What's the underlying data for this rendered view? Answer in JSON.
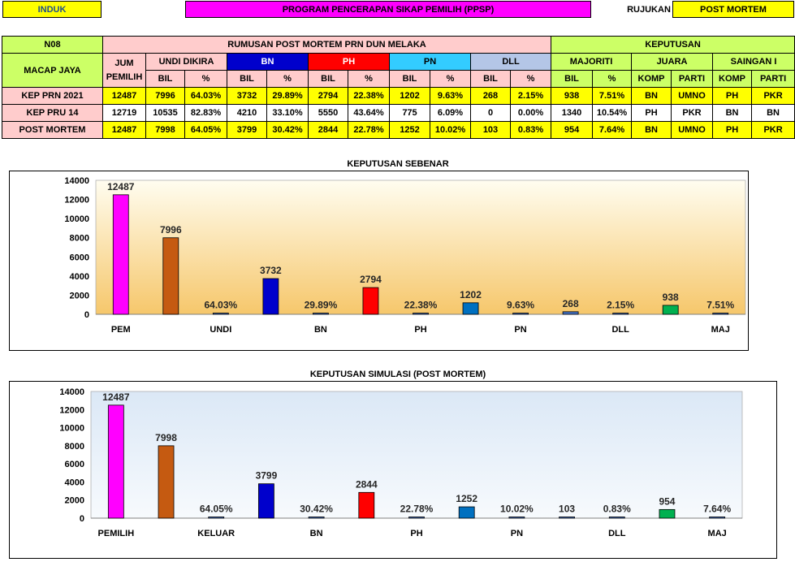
{
  "header": {
    "induk_label": "INDUK",
    "program_label": "PROGRAM PENCERAPAN SIKAP PEMILIH (PPSP)",
    "rujukan_label": "RUJUKAN",
    "post_mortem_label": "POST MORTEM"
  },
  "table": {
    "code": "N08",
    "title": "RUMUSAN POST MORTEM PRN DUN MELAKA",
    "decision_title": "KEPUTUSAN",
    "area": "MACAP JAYA",
    "jum_pemilih": "JUM PEMILIH",
    "undi_dikira": "UNDI DIKIRA",
    "parties": [
      "BN",
      "PH",
      "PN",
      "DLL"
    ],
    "majoriti": "MAJORITI",
    "juara": "JUARA",
    "saingan": "SAINGAN I",
    "bil": "BIL",
    "pct": "%",
    "komp": "KOMP",
    "parti": "PARTI",
    "rows": [
      {
        "label": "KEP PRN 2021",
        "cells": [
          "12487",
          "7996",
          "64.03%",
          "3732",
          "29.89%",
          "2794",
          "22.38%",
          "1202",
          "9.63%",
          "268",
          "2.15%",
          "938",
          "7.51%",
          "BN",
          "UMNO",
          "PH",
          "PKR"
        ]
      },
      {
        "label": "KEP PRU 14",
        "cells": [
          "12719",
          "10535",
          "82.83%",
          "4210",
          "33.10%",
          "5550",
          "43.64%",
          "775",
          "6.09%",
          "0",
          "0.00%",
          "1340",
          "10.54%",
          "PH",
          "PKR",
          "BN",
          "BN"
        ]
      },
      {
        "label": "POST MORTEM",
        "cells": [
          "12487",
          "7998",
          "64.05%",
          "3799",
          "30.42%",
          "2844",
          "22.78%",
          "1252",
          "10.02%",
          "103",
          "0.83%",
          "954",
          "7.64%",
          "BN",
          "UMNO",
          "PH",
          "PKR"
        ]
      }
    ]
  },
  "chart_data": [
    {
      "type": "bar",
      "title": "KEPUTUSAN SEBENAR",
      "ylim": [
        0,
        14000
      ],
      "yticks": [
        "0",
        "2000",
        "4000",
        "6000",
        "8000",
        "10000",
        "12000",
        "14000"
      ],
      "categories": [
        "PEM",
        "UNDI",
        "BN",
        "PH",
        "PN",
        "DLL",
        "MAJ"
      ],
      "values": [
        12487,
        7996,
        0.6403,
        3732,
        0.2989,
        2794,
        0.2238,
        1202,
        0.0963,
        268,
        0.0215,
        938,
        0.0751
      ],
      "labels": [
        "12487",
        "7996",
        "64.03%",
        "3732",
        "29.89%",
        "2794",
        "22.38%",
        "1202",
        "9.63%",
        "268",
        "2.15%",
        "938",
        "7.51%"
      ],
      "colors": [
        "#ff00ff",
        "#c55a11",
        "#4472c4",
        "#0000cc",
        "#4472c4",
        "#ff0000",
        "#4472c4",
        "#0070c0",
        "#4472c4",
        "#4472c4",
        "#4472c4",
        "#00b050",
        "#4472c4"
      ],
      "legend": "none",
      "grid": false
    },
    {
      "type": "bar",
      "title": "KEPUTUSAN SIMULASI (POST MORTEM)",
      "ylim": [
        0,
        14000
      ],
      "yticks": [
        "0",
        "2000",
        "4000",
        "6000",
        "8000",
        "10000",
        "12000",
        "14000"
      ],
      "categories": [
        "PEMILIH",
        "KELUAR",
        "BN",
        "PH",
        "PN",
        "DLL",
        "MAJ"
      ],
      "values": [
        12487,
        7998,
        0.6405,
        3799,
        0.3042,
        2844,
        0.2278,
        1252,
        0.1002,
        103,
        0.0083,
        954,
        0.0764
      ],
      "labels": [
        "12487",
        "7998",
        "64.05%",
        "3799",
        "30.42%",
        "2844",
        "22.78%",
        "1252",
        "10.02%",
        "103",
        "0.83%",
        "954",
        "7.64%"
      ],
      "colors": [
        "#ff00ff",
        "#c55a11",
        "#4472c4",
        "#0000cc",
        "#4472c4",
        "#ff0000",
        "#4472c4",
        "#0070c0",
        "#4472c4",
        "#4472c4",
        "#4472c4",
        "#00b050",
        "#4472c4"
      ],
      "legend": "none",
      "grid": false
    }
  ]
}
